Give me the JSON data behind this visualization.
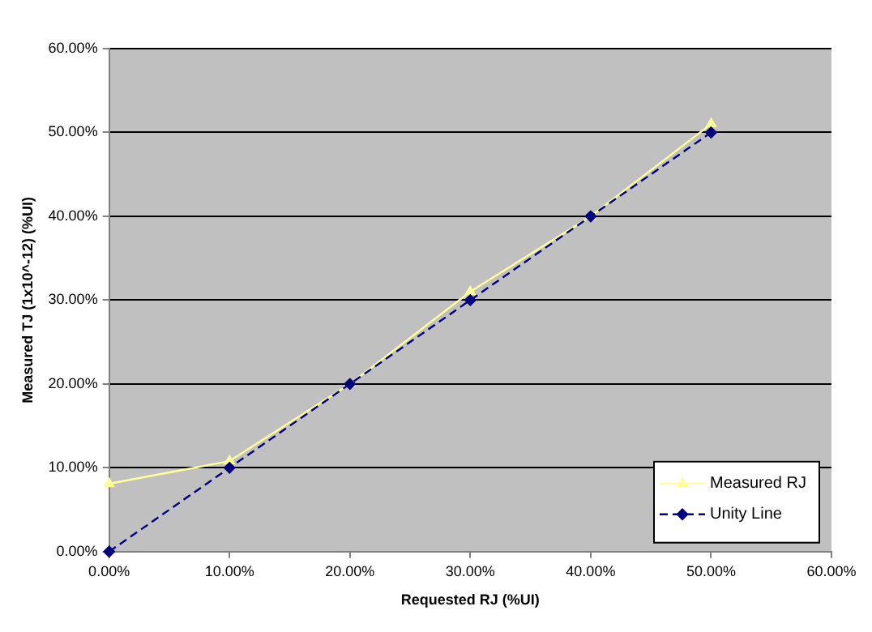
{
  "chart_data": {
    "type": "line",
    "xlabel": "Requested RJ (%UI)",
    "ylabel": "Measured TJ (1x10^-12) (%UI)",
    "x": [
      0,
      10,
      20,
      30,
      40,
      50
    ],
    "series": [
      {
        "name": "Measured RJ",
        "color": "#ffff99",
        "values": [
          8.1,
          10.8,
          20,
          31,
          40,
          51
        ],
        "marker": "triangle",
        "line_style": "solid"
      },
      {
        "name": "Unity Line",
        "color": "#000080",
        "values": [
          0,
          10,
          20,
          30,
          40,
          50
        ],
        "marker": "diamond",
        "line_style": "dashed"
      }
    ],
    "xlim": [
      0,
      60
    ],
    "xticks": [
      {
        "value": 0,
        "label": "0.00%"
      },
      {
        "value": 10,
        "label": "10.00%"
      },
      {
        "value": 20,
        "label": "20.00%"
      },
      {
        "value": 30,
        "label": "30.00%"
      },
      {
        "value": 40,
        "label": "40.00%"
      },
      {
        "value": 50,
        "label": "50.00%"
      },
      {
        "value": 60,
        "label": "60.00%"
      }
    ],
    "ylim": [
      0,
      60
    ],
    "yticks": [
      {
        "value": 0,
        "label": "0.00%"
      },
      {
        "value": 10,
        "label": "10.00%"
      },
      {
        "value": 20,
        "label": "20.00%"
      },
      {
        "value": 30,
        "label": "30.00%"
      },
      {
        "value": 40,
        "label": "40.00%"
      },
      {
        "value": 50,
        "label": "50.00%"
      },
      {
        "value": 60,
        "label": "60.00%"
      }
    ],
    "grid": "y",
    "legend": "bottom right"
  }
}
